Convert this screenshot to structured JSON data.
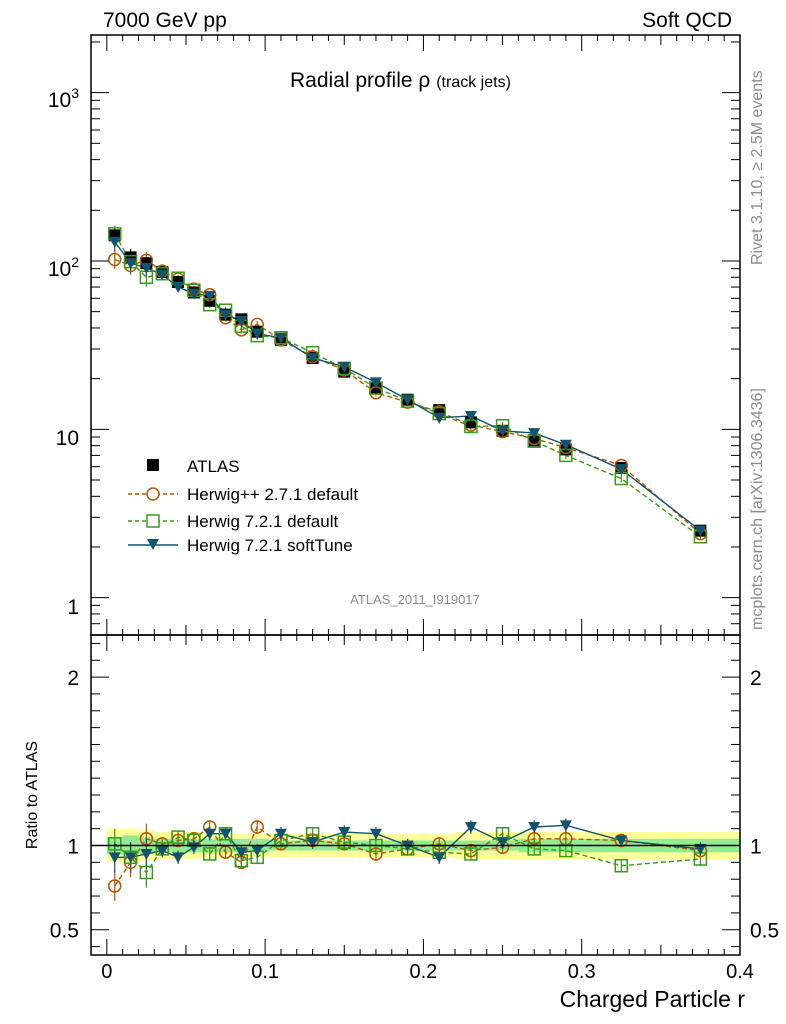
{
  "header": {
    "left": "7000 GeV pp",
    "right": "Soft QCD"
  },
  "side": {
    "rivet": "Rivet 3.1.10, ≥ 2.5M events",
    "mcplots": "mcplots.cern.ch [arXiv:1306.3436]"
  },
  "watermark": "ATLAS_2011_I919017",
  "colors": {
    "atlas": "#000000",
    "herwigpp": "#b35900",
    "herwig721": "#3a9a1a",
    "softtune": "#14526e",
    "band_inner": "#90ee90",
    "band_outer": "#ffff99"
  },
  "chart_data": {
    "type": "line",
    "title_main": "Radial profile",
    "title_symbol": "ρ",
    "title_sub": "(track jets)",
    "xlabel": "Charged Particle r",
    "ylabel_ratio": "Ratio to ATLAS",
    "xlim": [
      -0.01,
      0.4
    ],
    "ylim_main": [
      0.6,
      2200
    ],
    "yscale_main": "log",
    "ylim_ratio": [
      0.35,
      2.25
    ],
    "xticks": [
      "0",
      "0.1",
      "0.2",
      "0.3",
      "0.4"
    ],
    "yticks_main": [
      "1",
      "10",
      "10^2",
      "10^3"
    ],
    "yticks_ratio": [
      "0.5",
      "1",
      "2"
    ],
    "legend_position": "lower-left",
    "x": [
      0.005,
      0.015,
      0.025,
      0.035,
      0.045,
      0.055,
      0.065,
      0.075,
      0.085,
      0.095,
      0.11,
      0.13,
      0.15,
      0.17,
      0.19,
      0.21,
      0.23,
      0.25,
      0.27,
      0.29,
      0.325,
      0.375
    ],
    "series": [
      {
        "name": "ATLAS",
        "marker": "square-filled",
        "values": [
          142,
          105,
          97,
          86,
          75,
          65,
          58,
          48,
          45,
          38,
          34,
          26.5,
          22,
          17.5,
          15,
          13,
          11,
          9.8,
          8.6,
          7.6,
          5.9,
          2.5
        ]
      },
      {
        "name": "Herwig++ 2.7.1 default",
        "marker": "circle-open",
        "values": [
          102,
          94,
          101,
          87,
          78,
          68,
          63,
          46,
          39,
          42,
          34,
          27,
          22.5,
          16.5,
          14.5,
          12.7,
          10.6,
          9.7,
          8.8,
          7.8,
          6.1,
          2.4
        ]
      },
      {
        "name": "Herwig 7.2.1 default",
        "marker": "square-open",
        "values": [
          145,
          99,
          80,
          84,
          79,
          67,
          55,
          51,
          41,
          36,
          35,
          28.5,
          23,
          17.6,
          14.7,
          12.4,
          10.4,
          10.5,
          8.5,
          7.0,
          5.1,
          2.3
        ]
      },
      {
        "name": "Herwig 7.2.1 softTune",
        "marker": "triangle-down-filled",
        "values": [
          130,
          97,
          91,
          83,
          70,
          64,
          62,
          48,
          44,
          37,
          35,
          26.5,
          23.5,
          19,
          15,
          11.7,
          12,
          9.8,
          9.5,
          8.1,
          5.8,
          2.5
        ]
      }
    ],
    "ratio_series": [
      {
        "name": "Herwig++ 2.7.1 default",
        "values": [
          0.76,
          0.9,
          1.04,
          1.01,
          1.03,
          1.04,
          1.11,
          0.96,
          0.9,
          1.11,
          1.01,
          1.03,
          1.01,
          0.95,
          0.98,
          1.01,
          0.97,
          0.99,
          1.04,
          1.04,
          1.03,
          0.97
        ]
      },
      {
        "name": "Herwig 7.2.1 default",
        "values": [
          1.01,
          0.93,
          0.84,
          0.98,
          1.05,
          1.03,
          0.95,
          1.07,
          0.91,
          0.93,
          1.03,
          1.07,
          1.02,
          1.0,
          0.98,
          0.96,
          0.95,
          1.07,
          0.98,
          0.97,
          0.88,
          0.92
        ]
      },
      {
        "name": "Herwig 7.2.1 softTune",
        "values": [
          0.93,
          0.93,
          0.95,
          0.97,
          0.93,
          0.99,
          1.07,
          1.07,
          0.96,
          0.97,
          1.07,
          1.02,
          1.08,
          1.07,
          1.0,
          0.93,
          1.11,
          1.02,
          1.11,
          1.12,
          1.03,
          0.98
        ]
      }
    ],
    "band_inner_halfwidth": [
      0.05,
      0.06,
      0.05,
      0.04,
      0.04,
      0.04,
      0.04,
      0.04,
      0.04,
      0.04,
      0.03,
      0.03,
      0.03,
      0.03,
      0.03,
      0.03,
      0.03,
      0.03,
      0.04,
      0.04,
      0.04,
      0.04
    ],
    "band_outer_halfwidth": [
      0.1,
      0.1,
      0.09,
      0.08,
      0.08,
      0.08,
      0.07,
      0.07,
      0.07,
      0.07,
      0.07,
      0.07,
      0.07,
      0.07,
      0.07,
      0.07,
      0.08,
      0.08,
      0.08,
      0.08,
      0.08,
      0.08
    ]
  }
}
